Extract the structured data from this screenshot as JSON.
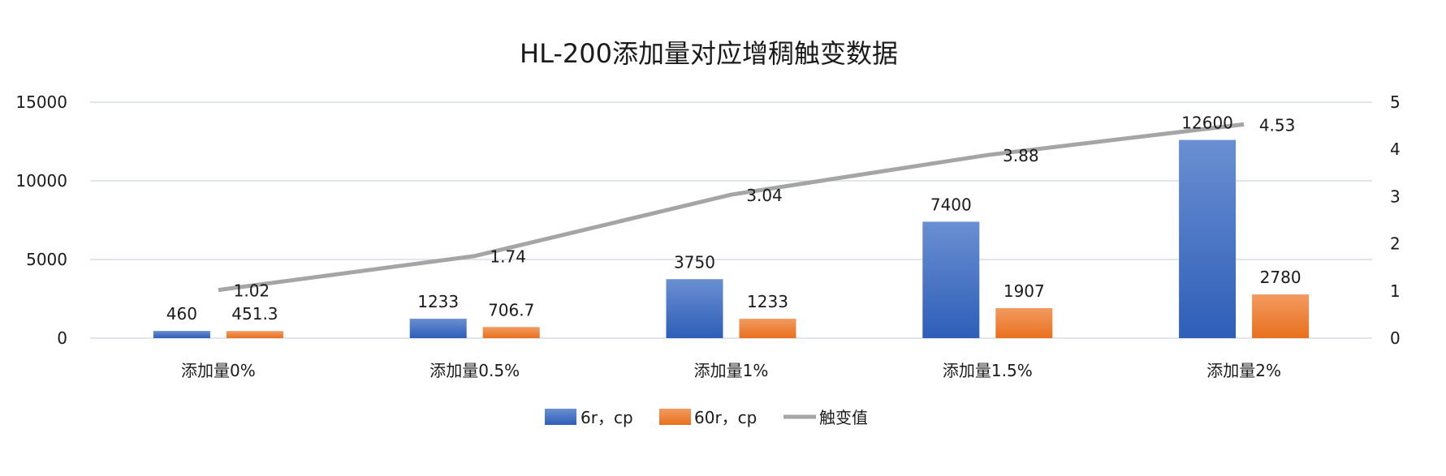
{
  "chart_data": {
    "type": "bar",
    "title": "HL-200添加量对应增稠触变数据",
    "categories": [
      "添加量0%",
      "添加量0.5%",
      "添加量1%",
      "添加量1.5%",
      "添加量2%"
    ],
    "series": [
      {
        "name": "6r，cp",
        "type": "bar",
        "axis": "left",
        "values": [
          460,
          1233,
          3750,
          7400,
          12600
        ],
        "labels": [
          "460",
          "1233",
          "3750",
          "7400",
          "12600"
        ],
        "color": "#4472c4"
      },
      {
        "name": "60r，cp",
        "type": "bar",
        "axis": "left",
        "values": [
          451.3,
          706.7,
          1233,
          1907,
          2780
        ],
        "labels": [
          "451.3",
          "706.7",
          "1233",
          "1907",
          "2780"
        ],
        "color": "#ed7d31"
      },
      {
        "name": "触变值",
        "type": "line",
        "axis": "right",
        "values": [
          1.02,
          1.74,
          3.04,
          3.88,
          4.53
        ],
        "labels": [
          "1.02",
          "1.74",
          "3.04",
          "3.88",
          "4.53"
        ],
        "color": "#a5a5a5"
      }
    ],
    "y_left": {
      "range": [
        0,
        15000
      ],
      "ticks": [
        "0",
        "5000",
        "10000",
        "15000"
      ],
      "tick_values": [
        0,
        5000,
        10000,
        15000
      ]
    },
    "y_right": {
      "range": [
        0,
        5
      ],
      "ticks": [
        "0",
        "1",
        "2",
        "3",
        "4",
        "5"
      ],
      "tick_values": [
        0,
        1,
        2,
        3,
        4,
        5
      ]
    },
    "grid": true,
    "legend": "bottom"
  }
}
